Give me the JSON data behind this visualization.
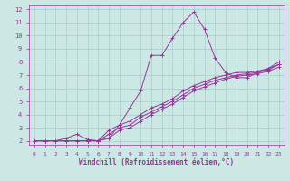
{
  "xlabel": "Windchill (Refroidissement éolien,°C)",
  "background_color": "#cce8e4",
  "grid_color": "#aacccc",
  "line_color": "#993399",
  "xlim": [
    -0.5,
    23.5
  ],
  "ylim": [
    1.7,
    12.3
  ],
  "xticks": [
    0,
    1,
    2,
    3,
    4,
    5,
    6,
    7,
    8,
    9,
    10,
    11,
    12,
    13,
    14,
    15,
    16,
    17,
    18,
    19,
    20,
    21,
    22,
    23
  ],
  "yticks": [
    2,
    3,
    4,
    5,
    6,
    7,
    8,
    9,
    10,
    11,
    12
  ],
  "lines": [
    {
      "x": [
        0,
        1,
        2,
        3,
        4,
        5,
        6,
        7,
        8,
        9,
        10,
        11,
        12,
        13,
        14,
        15,
        16,
        17,
        18,
        19,
        20,
        21,
        22,
        23
      ],
      "y": [
        2,
        2,
        2,
        2.2,
        2.5,
        2.1,
        2,
        2.2,
        3.2,
        4.5,
        5.8,
        8.5,
        8.5,
        9.8,
        11.0,
        11.8,
        10.5,
        8.3,
        7.2,
        6.8,
        6.8,
        7.2,
        7.5,
        8.0
      ]
    },
    {
      "x": [
        0,
        1,
        2,
        3,
        4,
        5,
        6,
        7,
        8,
        9,
        10,
        11,
        12,
        13,
        14,
        15,
        16,
        17,
        18,
        19,
        20,
        21,
        22,
        23
      ],
      "y": [
        2,
        2,
        2,
        2,
        2,
        2,
        2,
        2.8,
        3.2,
        3.5,
        4.0,
        4.5,
        4.8,
        5.2,
        5.8,
        6.2,
        6.5,
        6.8,
        7.0,
        7.2,
        7.2,
        7.3,
        7.5,
        7.8
      ]
    },
    {
      "x": [
        0,
        1,
        2,
        3,
        4,
        5,
        6,
        7,
        8,
        9,
        10,
        11,
        12,
        13,
        14,
        15,
        16,
        17,
        18,
        19,
        20,
        21,
        22,
        23
      ],
      "y": [
        2,
        2,
        2,
        2,
        2,
        2,
        2,
        2.5,
        3.0,
        3.2,
        3.8,
        4.2,
        4.6,
        5.0,
        5.5,
        6.0,
        6.3,
        6.6,
        6.8,
        7.0,
        7.1,
        7.2,
        7.4,
        7.8
      ]
    },
    {
      "x": [
        0,
        1,
        2,
        3,
        4,
        5,
        6,
        7,
        8,
        9,
        10,
        11,
        12,
        13,
        14,
        15,
        16,
        17,
        18,
        19,
        20,
        21,
        22,
        23
      ],
      "y": [
        2,
        2,
        2,
        2,
        2,
        2,
        2,
        2.2,
        2.8,
        3.0,
        3.5,
        4.0,
        4.4,
        4.8,
        5.3,
        5.8,
        6.1,
        6.4,
        6.7,
        6.9,
        7.0,
        7.1,
        7.3,
        7.6
      ]
    }
  ]
}
